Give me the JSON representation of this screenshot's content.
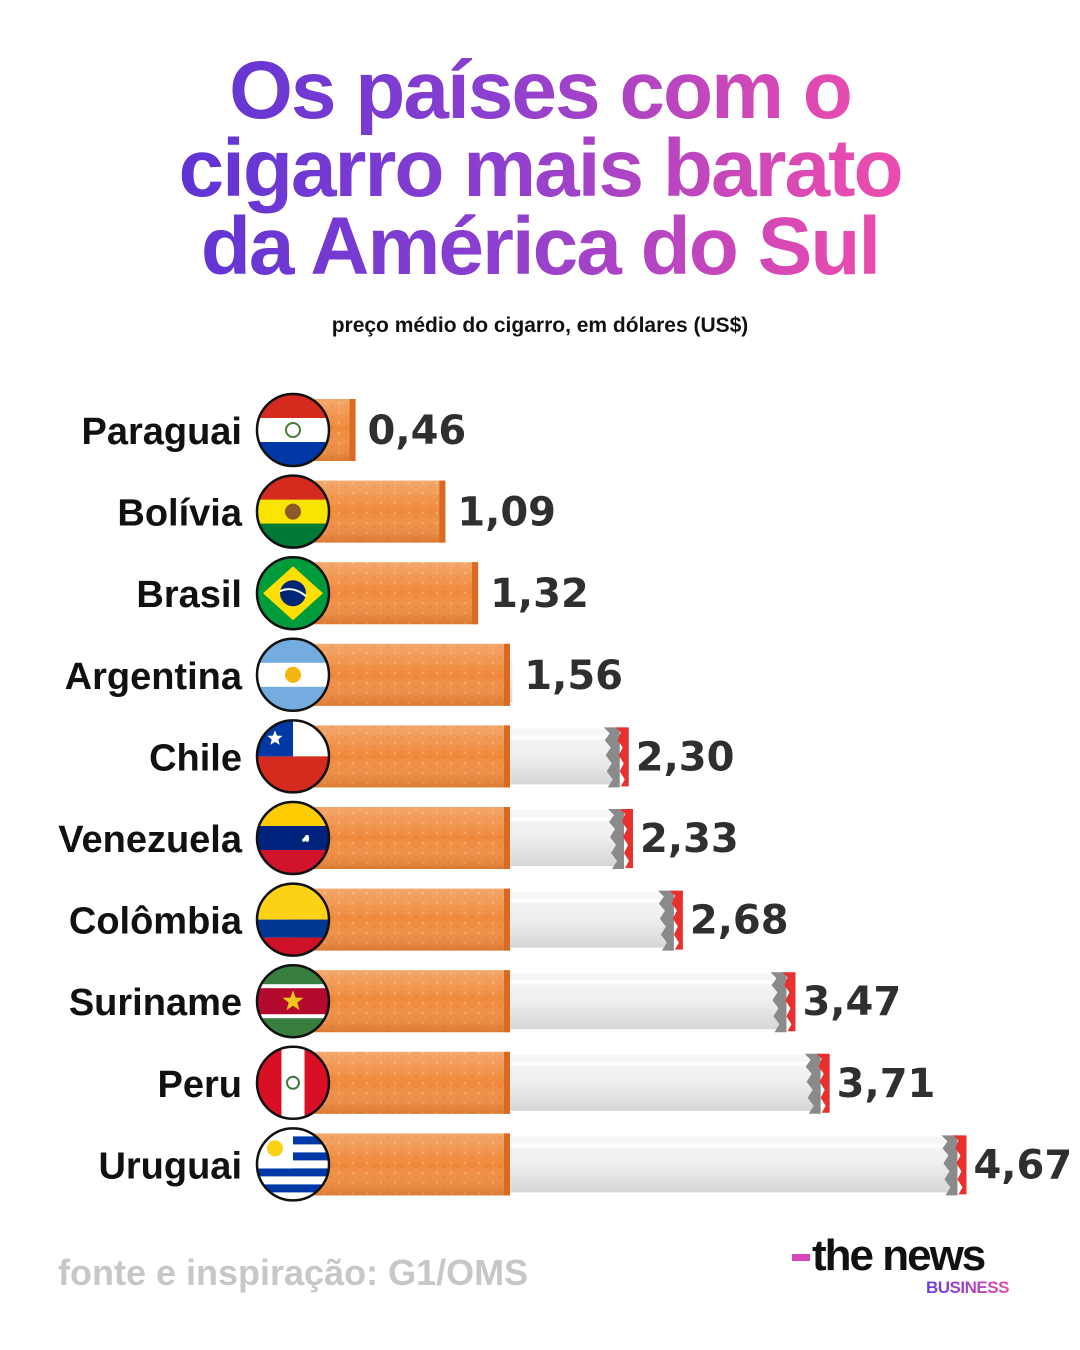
{
  "header": {
    "title_lines": [
      "Os países com o",
      "cigarro mais barato",
      "da América do Sul"
    ],
    "subtitle": "preço médio do cigarro, em dólares (US$)"
  },
  "footer": {
    "source": "fonte e inspiração: G1/OMS",
    "brand_name": "the news",
    "brand_sub": "BUSINESS"
  },
  "colors": {
    "filter": "#f08a3c",
    "paper": "#ededed",
    "ember_grey": "#8a8a8a",
    "ember_red": "#e8302f",
    "title_start": "#4b2fd6",
    "title_end": "#f050a8"
  },
  "chart_data": {
    "type": "bar",
    "orientation": "horizontal",
    "categories": [
      "Paraguai",
      "Bolívia",
      "Brasil",
      "Argentina",
      "Chile",
      "Venezuela",
      "Colômbia",
      "Suriname",
      "Peru",
      "Uruguai"
    ],
    "values": [
      0.46,
      1.09,
      1.32,
      1.56,
      2.3,
      2.33,
      2.68,
      3.47,
      3.71,
      4.67
    ],
    "value_labels": [
      "0,46",
      "1,09",
      "1,32",
      "1,56",
      "2,30",
      "2,33",
      "2,68",
      "3,47",
      "3,71",
      "4,67"
    ],
    "flags": [
      "paraguay-flag-icon",
      "bolivia-flag-icon",
      "brazil-flag-icon",
      "argentina-flag-icon",
      "chile-flag-icon",
      "venezuela-flag-icon",
      "colombia-flag-icon",
      "suriname-flag-icon",
      "peru-flag-icon",
      "uruguay-flag-icon"
    ],
    "title": "Os países com o cigarro mais barato da América do Sul",
    "xlabel": "",
    "ylabel": "",
    "grid": false,
    "legend": "none"
  }
}
